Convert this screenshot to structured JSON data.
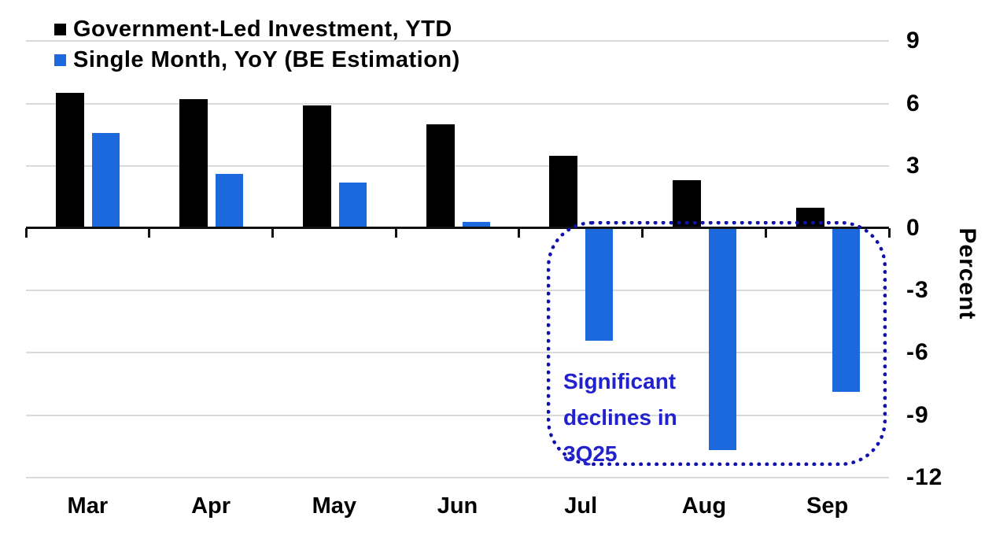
{
  "chart_data": {
    "type": "bar",
    "categories": [
      "Mar",
      "Apr",
      "May",
      "Jun",
      "Jul",
      "Aug",
      "Sep"
    ],
    "series": [
      {
        "name": "Government-Led Investment, YTD",
        "color": "#000000",
        "values": [
          6.5,
          6.2,
          5.9,
          5.0,
          3.5,
          2.3,
          1.0
        ]
      },
      {
        "name": "Single Month, YoY (BE Estimation)",
        "color": "#1b69dd",
        "values": [
          4.6,
          2.6,
          2.2,
          0.3,
          -5.4,
          -10.7,
          -7.9
        ]
      }
    ],
    "title": "",
    "xlabel": "",
    "ylabel": "Percent",
    "yticks": [
      9,
      6,
      3,
      0,
      -3,
      -6,
      -9,
      -12
    ],
    "ylim": [
      -12,
      9
    ],
    "grid": true,
    "legend_position": "top-left",
    "annotation": {
      "lines": [
        "Significant",
        "declines in",
        "3Q25"
      ],
      "text_color": "#2121cd",
      "box_color": "#1111ad"
    }
  },
  "colors": {
    "background": "#ffffff",
    "gridline": "#dadada",
    "axis": "#111111",
    "bar_black": "#000000",
    "bar_blue": "#1b69dd",
    "annotation_text": "#2121cd",
    "annotation_border": "#1111ad"
  }
}
